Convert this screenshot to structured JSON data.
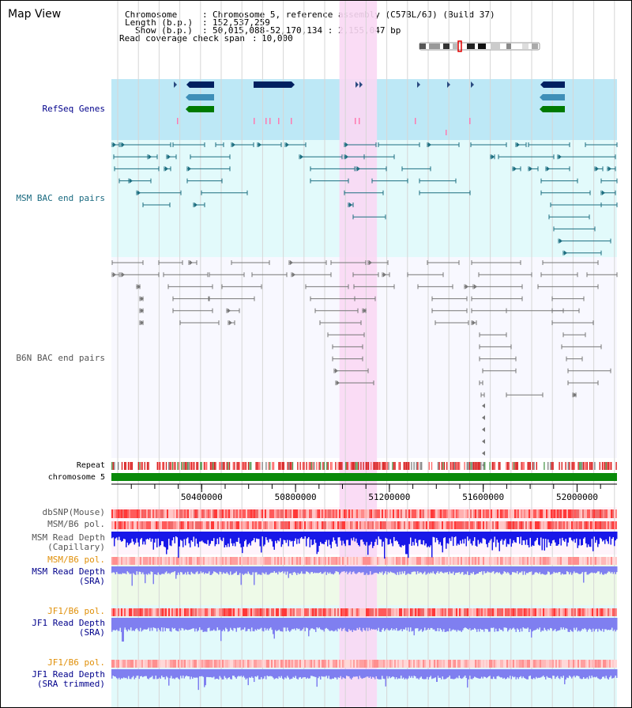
{
  "view_title": "Map View",
  "info": {
    "chromosome_label": "Chromosome",
    "chromosome_value": "Chromosome 5, reference assembly (C57BL/6J) (Build 37)",
    "length_label": "Length (b.p.)",
    "length_value": "152,537,259",
    "show_label": "Show (b.p.)",
    "show_value": "50,015,088-52,170,134 : 2,155,047 bp",
    "coverage_label": "Read coverage check span",
    "coverage_value": "10,000"
  },
  "view_range": {
    "start": 50015088,
    "end": 52170134
  },
  "highlight_range": {
    "start": 50987000,
    "end": 51147000
  },
  "axis": {
    "ticks": [
      {
        "label": "50400000",
        "value": 50400000
      },
      {
        "label": "50800000",
        "value": 50800000
      },
      {
        "label": "51200000",
        "value": 51200000
      },
      {
        "label": "51600000",
        "value": 51600000
      },
      {
        "label": "52000000",
        "value": 52000000
      }
    ]
  },
  "tracks": {
    "refseq": "RefSeq Genes",
    "msm_bac": "MSM BAC end pairs",
    "b6n_bac": "B6N BAC end pairs",
    "repeat": "Repeat",
    "chromosome": "chromosome 5",
    "dbsnp": "dbSNP(Mouse)",
    "msm_b6_pol": "MSM/B6 pol.",
    "msm_depth_cap_1": "MSM Read Depth",
    "msm_depth_cap_2": "(Capillary)",
    "msm_b6_pol_2": "MSM/B6 pol.",
    "msm_depth_sra_1": "MSM Read Depth",
    "msm_depth_sra_2": "(SRA)",
    "jf1_b6_pol": "JF1/B6 pol.",
    "jf1_depth_sra_1": "JF1 Read Depth",
    "jf1_depth_sra_2": "(SRA)",
    "jf1_b6_pol_2": "JF1/B6 pol.",
    "jf1_depth_trim_1": "JF1 Read Depth",
    "jf1_depth_trim_2": "(SRA trimmed)"
  },
  "colors": {
    "highlight": "#f9d8f4",
    "gene_dark": "#002060",
    "gene_mid": "#3e8fb8",
    "gene_green": "#007a00",
    "msm_bac": "#1c6e80",
    "b6n_bac": "#777777",
    "depth_blue": "#1818e8",
    "depth_light": "#7f7ff0",
    "pol_red": "#f06a6a",
    "label_blue": "#00008b",
    "label_orange": "#e0900a",
    "label_teal": "#1a6a80"
  }
}
